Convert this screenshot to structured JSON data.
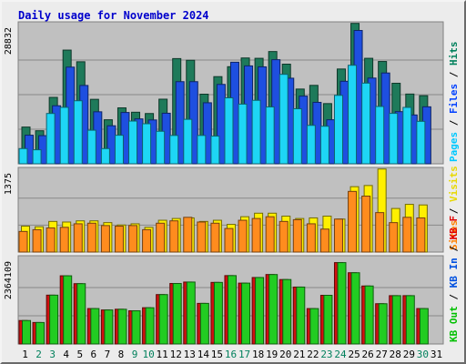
{
  "chart_data": {
    "type": "bar",
    "title": "Daily usage for November 2024",
    "days": [
      "1",
      "2",
      "3",
      "4",
      "5",
      "6",
      "7",
      "8",
      "9",
      "10",
      "11",
      "12",
      "13",
      "14",
      "15",
      "16",
      "17",
      "18",
      "19",
      "20",
      "21",
      "22",
      "23",
      "24",
      "25",
      "26",
      "27",
      "28",
      "29",
      "30",
      "31"
    ],
    "weekend_days": [
      "2",
      "3",
      "9",
      "10",
      "16",
      "17",
      "23",
      "24",
      "30"
    ],
    "panels": [
      {
        "id": "hits-files-pages",
        "ymax_label": "28832",
        "ymax": 28832,
        "legend": [
          {
            "text": "Hits",
            "color": "#00805c"
          },
          {
            "text": "Files",
            "color": "#0040ff"
          },
          {
            "text": "Pages",
            "color": "#00c8ff"
          }
        ],
        "series": [
          {
            "name": "Hits",
            "color": "#1e7a5a",
            "values": [
              7660,
              6890,
              13850,
              23700,
              21270,
              13440,
              9180,
              11660,
              10750,
              10480,
              13470,
              21930,
              21580,
              14510,
              18170,
              20240,
              22060,
              21990,
              23400,
              20770,
              15580,
              16350,
              12550,
              19760,
              29270,
              21990,
              21330,
              16790,
              14540,
              14200,
              null
            ]
          },
          {
            "name": "Files",
            "color": "#1e4fe0",
            "values": [
              5960,
              5870,
              12100,
              20150,
              16330,
              10840,
              7930,
              10700,
              9360,
              9140,
              10540,
              17120,
              17120,
              12720,
              16550,
              21170,
              20410,
              20210,
              21700,
              17840,
              14110,
              12810,
              9180,
              17200,
              27790,
              17870,
              18930,
              10870,
              10180,
              11880,
              null
            ]
          },
          {
            "name": "Pages",
            "color": "#1ed6f5",
            "values": [
              3170,
              2920,
              10490,
              11770,
              13140,
              7000,
              3170,
              5950,
              8910,
              8350,
              6780,
              5910,
              9270,
              5910,
              5770,
              13750,
              12440,
              13230,
              11850,
              18650,
              11470,
              8010,
              7830,
              14270,
              20540,
              16820,
              11950,
              10510,
              11760,
              8850,
              null
            ]
          }
        ]
      },
      {
        "id": "visits-sites",
        "ymax_label": "1375",
        "ymax": 1375,
        "legend": [
          {
            "text": "Visits",
            "color": "#e8d800"
          },
          {
            "text": "Sites",
            "color": "#ff8000"
          }
        ],
        "series": [
          {
            "name": "Visits",
            "color": "#fff000",
            "values": [
              440,
              430,
              520,
              510,
              530,
              530,
              500,
              460,
              480,
              420,
              540,
              570,
              580,
              520,
              540,
              470,
              600,
              660,
              660,
              610,
              570,
              580,
              610,
              560,
              1110,
              1130,
              1410,
              740,
              810,
              800,
              null
            ]
          },
          {
            "name": "Sites",
            "color": "#ff8c1e",
            "values": [
              350,
              380,
              410,
              420,
              480,
              490,
              450,
              440,
              450,
              380,
              490,
              530,
              590,
              510,
              490,
              400,
              540,
              570,
              600,
              520,
              550,
              480,
              390,
              560,
              1030,
              950,
              670,
              500,
              590,
              580,
              null
            ]
          }
        ]
      },
      {
        "id": "kb",
        "ymax_label": "2364109",
        "ymax": 2364109,
        "legend": [
          {
            "text": "KB F",
            "color": "#e00000"
          },
          {
            "text": "KB In",
            "color": "#0050e0"
          },
          {
            "text": "KB Out",
            "color": "#00c000"
          }
        ],
        "series": [
          {
            "name": "KB F",
            "color": "#d01010",
            "values": [
              655000,
              600000,
              1364000,
              1905000,
              1685000,
              990000,
              950000,
              970000,
              927000,
              1013000,
              1380000,
              1690000,
              1730000,
              1134000,
              1720000,
              1910000,
              1700000,
              1857000,
              1940000,
              1800000,
              1590000,
              989000,
              1360000,
              2273000,
              1990000,
              1620000,
              1125000,
              1350000,
              1350000,
              990000,
              null
            ]
          },
          {
            "name": "KB Out",
            "color": "#22cc22",
            "values": [
              655000,
              600000,
              1364000,
              1905000,
              1685000,
              990000,
              950000,
              970000,
              927000,
              1013000,
              1380000,
              1690000,
              1730000,
              1134000,
              1720000,
              1910000,
              1700000,
              1857000,
              1940000,
              1800000,
              1590000,
              989000,
              1360000,
              2273000,
              1990000,
              1620000,
              1125000,
              1350000,
              1350000,
              990000,
              null
            ]
          }
        ]
      }
    ]
  }
}
